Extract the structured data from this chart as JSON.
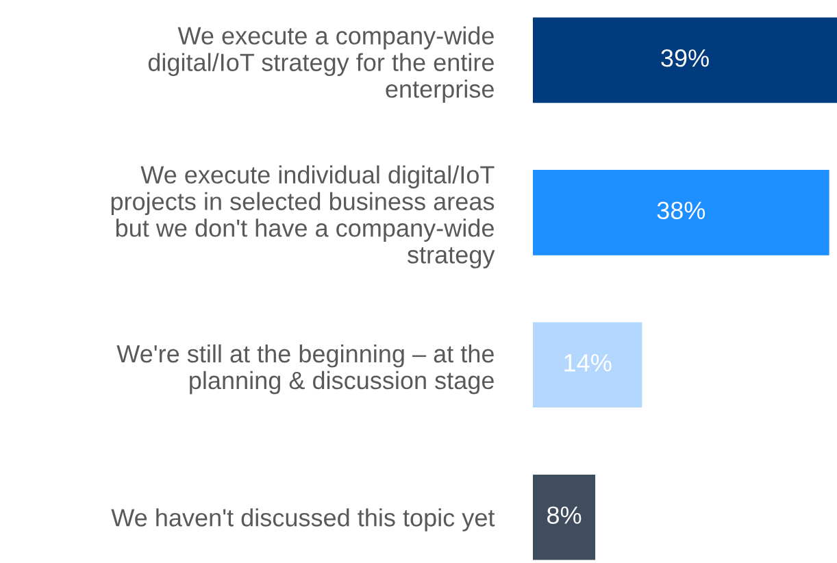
{
  "chart_data": {
    "type": "bar",
    "orientation": "horizontal",
    "categories": [
      "We execute a company-wide\ndigital/IoT strategy for the entire\nenterprise",
      "We execute individual digital/IoT\nprojects in selected business areas\nbut we don't have a company-wide\nstrategy",
      "We're still at the beginning – at the\nplanning & discussion stage",
      "We haven't discussed this topic yet"
    ],
    "values": [
      39,
      38,
      14,
      8
    ],
    "colors": [
      "#003c7d",
      "#1e8fff",
      "#b3d7ff",
      "#3f4d5e"
    ],
    "data_labels": true,
    "value_labels": [
      "39%",
      "38%",
      "14%",
      "8%"
    ]
  }
}
